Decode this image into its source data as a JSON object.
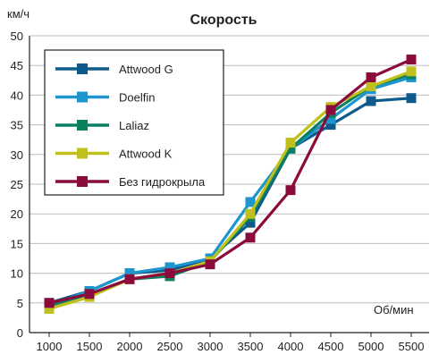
{
  "chart_data": {
    "type": "line",
    "title": "Скорость",
    "ylabel": "км/ч",
    "xlabel": "Об/мин",
    "x": [
      1000,
      1500,
      2000,
      2500,
      3000,
      3500,
      4000,
      4500,
      5000,
      5500
    ],
    "ylim": [
      0,
      50
    ],
    "yticks": [
      0,
      5,
      10,
      15,
      20,
      25,
      30,
      35,
      40,
      45,
      50
    ],
    "grid": true,
    "legend_position": "top-left",
    "series": [
      {
        "name": "Attwood G",
        "color": "#0f5a8c",
        "values": [
          5,
          7,
          10,
          10.5,
          12.5,
          18.5,
          31,
          35,
          39,
          39.5
        ]
      },
      {
        "name": "Doelfin",
        "color": "#1d95cf",
        "values": [
          4.5,
          7,
          10,
          11,
          12.5,
          22,
          31,
          36,
          41,
          43
        ]
      },
      {
        "name": "Laliaz",
        "color": "#0b8060",
        "values": [
          4.5,
          6.5,
          9,
          9.5,
          12,
          19.5,
          31,
          37,
          41.5,
          43.5
        ]
      },
      {
        "name": "Attwood K",
        "color": "#c0c01c",
        "values": [
          4,
          6,
          9,
          10,
          12,
          20,
          32,
          38,
          41.5,
          44
        ]
      },
      {
        "name": "Без гидрокрыла",
        "color": "#8b0b3c",
        "values": [
          5,
          6.5,
          9,
          10,
          11.5,
          16,
          24,
          37.5,
          43,
          46
        ]
      }
    ]
  }
}
